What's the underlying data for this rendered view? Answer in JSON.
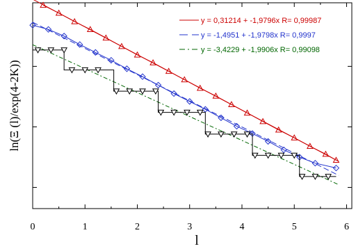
{
  "chart_data": {
    "type": "line",
    "xlabel": "l",
    "ylabel": "ln(Ξ (l)/exp(4-2K))",
    "xlim": [
      0,
      6.1
    ],
    "ylim": [
      -3.35,
      0.05
    ],
    "x_ticks": [
      "0",
      "1",
      "2",
      "3",
      "4",
      "5",
      "6"
    ],
    "grid": false,
    "legend_position": "top-right",
    "series": [
      {
        "name": "y = 0,31214 + -1,9796x R= 0,99987",
        "color": "#cc0000",
        "marker": "triangle-up",
        "x": [
          0.2,
          0.5,
          0.8,
          1.1,
          1.4,
          1.7,
          2.0,
          2.3,
          2.6,
          2.9,
          3.2,
          3.5,
          3.8,
          4.1,
          4.4,
          4.7,
          5.0,
          5.3,
          5.6,
          5.8
        ],
        "y": [
          0.01,
          -0.12,
          -0.26,
          -0.39,
          -0.53,
          -0.67,
          -0.81,
          -0.94,
          -1.08,
          -1.22,
          -1.36,
          -1.49,
          -1.63,
          -1.77,
          -1.91,
          -2.05,
          -2.18,
          -2.32,
          -2.45,
          -2.55
        ],
        "fit": {
          "intercept": 0.31214,
          "slope": -1.9796
        }
      },
      {
        "name": "y = -1,4951 + -1,9798x R= 0,9997",
        "color": "#2233cc",
        "marker": "diamond",
        "x": [
          0.0,
          0.3,
          0.6,
          0.9,
          1.2,
          1.5,
          1.8,
          2.1,
          2.4,
          2.7,
          3.0,
          3.3,
          3.6,
          3.9,
          4.2,
          4.5,
          4.8,
          5.1,
          5.4,
          5.8
        ],
        "y": [
          -0.32,
          -0.39,
          -0.5,
          -0.64,
          -0.77,
          -0.9,
          -1.04,
          -1.17,
          -1.31,
          -1.45,
          -1.58,
          -1.71,
          -1.85,
          -1.99,
          -2.11,
          -2.24,
          -2.38,
          -2.5,
          -2.6,
          -2.68
        ],
        "fit": {
          "intercept": -1.4951,
          "slope": -1.9798
        }
      },
      {
        "name": "y = -3,4229 + -1,9906x R= 0,99098",
        "color": "#006600",
        "marker": "triangle-down",
        "x": [
          0.1,
          0.35,
          0.6,
          0.75,
          1.0,
          1.25,
          1.6,
          1.85,
          2.1,
          2.35,
          2.45,
          2.7,
          2.95,
          3.2,
          3.35,
          3.6,
          3.85,
          4.1,
          4.25,
          4.5,
          4.75,
          5.0,
          5.15,
          5.4,
          5.65
        ],
        "y": [
          -0.73,
          -0.73,
          -0.73,
          -1.06,
          -1.06,
          -1.06,
          -1.41,
          -1.41,
          -1.41,
          -1.41,
          -1.76,
          -1.76,
          -1.76,
          -1.76,
          -2.12,
          -2.12,
          -2.12,
          -2.12,
          -2.47,
          -2.47,
          -2.47,
          -2.47,
          -2.82,
          -2.82,
          -2.82
        ],
        "step": [
          [
            0.0,
            -0.73
          ],
          [
            0.6,
            -0.73
          ],
          [
            0.6,
            -1.06
          ],
          [
            1.55,
            -1.06
          ],
          [
            1.55,
            -1.41
          ],
          [
            2.4,
            -1.41
          ],
          [
            2.4,
            -1.76
          ],
          [
            3.3,
            -1.76
          ],
          [
            3.3,
            -2.12
          ],
          [
            4.2,
            -2.12
          ],
          [
            4.2,
            -2.47
          ],
          [
            5.1,
            -2.47
          ],
          [
            5.1,
            -2.82
          ],
          [
            5.8,
            -2.82
          ]
        ],
        "fit": {
          "intercept": -3.4229,
          "slope": -1.9906
        }
      }
    ]
  }
}
